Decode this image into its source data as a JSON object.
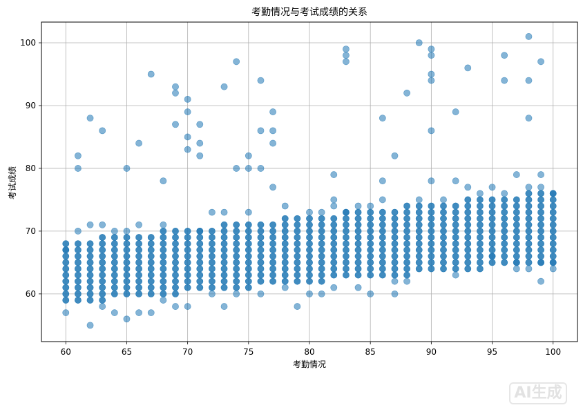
{
  "chart_data": {
    "type": "scatter",
    "title": "考勤情况与考试成绩的关系",
    "xlabel": "考勤情况",
    "ylabel": "考试成绩",
    "xlim": [
      58,
      102
    ],
    "ylim": [
      52.4,
      103.3
    ],
    "xticks": [
      60,
      65,
      70,
      75,
      80,
      85,
      90,
      95,
      100
    ],
    "yticks": [
      60,
      70,
      80,
      90,
      100
    ],
    "grid": true,
    "point_color": "#1f77b4",
    "point_alpha": 0.55,
    "dense_band": {
      "x_min": 60,
      "x_max": 100,
      "base_low": 59,
      "base_high": 68,
      "slope_low": 0.16,
      "slope_high": 0.2
    },
    "outliers": [
      {
        "x": 60,
        "y": 57
      },
      {
        "x": 60,
        "y": 67
      },
      {
        "x": 61,
        "y": 80
      },
      {
        "x": 61,
        "y": 82
      },
      {
        "x": 61,
        "y": 70
      },
      {
        "x": 62,
        "y": 88
      },
      {
        "x": 62,
        "y": 55
      },
      {
        "x": 62,
        "y": 71
      },
      {
        "x": 63,
        "y": 86
      },
      {
        "x": 63,
        "y": 71
      },
      {
        "x": 63,
        "y": 58
      },
      {
        "x": 64,
        "y": 57
      },
      {
        "x": 64,
        "y": 70
      },
      {
        "x": 65,
        "y": 80
      },
      {
        "x": 65,
        "y": 56
      },
      {
        "x": 65,
        "y": 70
      },
      {
        "x": 66,
        "y": 84
      },
      {
        "x": 66,
        "y": 57
      },
      {
        "x": 66,
        "y": 71
      },
      {
        "x": 67,
        "y": 95
      },
      {
        "x": 67,
        "y": 57
      },
      {
        "x": 68,
        "y": 78
      },
      {
        "x": 68,
        "y": 59
      },
      {
        "x": 68,
        "y": 71
      },
      {
        "x": 69,
        "y": 93
      },
      {
        "x": 69,
        "y": 92
      },
      {
        "x": 69,
        "y": 87
      },
      {
        "x": 69,
        "y": 58
      },
      {
        "x": 70,
        "y": 91
      },
      {
        "x": 70,
        "y": 89
      },
      {
        "x": 70,
        "y": 85
      },
      {
        "x": 70,
        "y": 83
      },
      {
        "x": 70,
        "y": 58
      },
      {
        "x": 71,
        "y": 87
      },
      {
        "x": 71,
        "y": 84
      },
      {
        "x": 71,
        "y": 82
      },
      {
        "x": 71,
        "y": 70
      },
      {
        "x": 72,
        "y": 73
      },
      {
        "x": 72,
        "y": 60
      },
      {
        "x": 73,
        "y": 93
      },
      {
        "x": 73,
        "y": 58
      },
      {
        "x": 73,
        "y": 73
      },
      {
        "x": 74,
        "y": 97
      },
      {
        "x": 74,
        "y": 80
      },
      {
        "x": 74,
        "y": 60
      },
      {
        "x": 75,
        "y": 82
      },
      {
        "x": 75,
        "y": 80
      },
      {
        "x": 75,
        "y": 73
      },
      {
        "x": 76,
        "y": 94
      },
      {
        "x": 76,
        "y": 86
      },
      {
        "x": 76,
        "y": 80
      },
      {
        "x": 76,
        "y": 60
      },
      {
        "x": 77,
        "y": 89
      },
      {
        "x": 77,
        "y": 86
      },
      {
        "x": 77,
        "y": 84
      },
      {
        "x": 77,
        "y": 77
      },
      {
        "x": 78,
        "y": 74
      },
      {
        "x": 78,
        "y": 61
      },
      {
        "x": 79,
        "y": 58
      },
      {
        "x": 80,
        "y": 73
      },
      {
        "x": 80,
        "y": 60
      },
      {
        "x": 81,
        "y": 73
      },
      {
        "x": 81,
        "y": 60
      },
      {
        "x": 82,
        "y": 79
      },
      {
        "x": 82,
        "y": 75
      },
      {
        "x": 82,
        "y": 74
      },
      {
        "x": 82,
        "y": 61
      },
      {
        "x": 83,
        "y": 99
      },
      {
        "x": 83,
        "y": 98
      },
      {
        "x": 83,
        "y": 97
      },
      {
        "x": 83,
        "y": 73
      },
      {
        "x": 84,
        "y": 74
      },
      {
        "x": 84,
        "y": 61
      },
      {
        "x": 85,
        "y": 74
      },
      {
        "x": 85,
        "y": 60
      },
      {
        "x": 86,
        "y": 88
      },
      {
        "x": 86,
        "y": 78
      },
      {
        "x": 86,
        "y": 75
      },
      {
        "x": 87,
        "y": 82
      },
      {
        "x": 87,
        "y": 60
      },
      {
        "x": 87,
        "y": 62
      },
      {
        "x": 88,
        "y": 92
      },
      {
        "x": 88,
        "y": 62
      },
      {
        "x": 89,
        "y": 100
      },
      {
        "x": 89,
        "y": 75
      },
      {
        "x": 90,
        "y": 99
      },
      {
        "x": 90,
        "y": 98
      },
      {
        "x": 90,
        "y": 95
      },
      {
        "x": 90,
        "y": 94
      },
      {
        "x": 90,
        "y": 86
      },
      {
        "x": 90,
        "y": 78
      },
      {
        "x": 91,
        "y": 75
      },
      {
        "x": 92,
        "y": 89
      },
      {
        "x": 92,
        "y": 78
      },
      {
        "x": 92,
        "y": 63
      },
      {
        "x": 93,
        "y": 96
      },
      {
        "x": 93,
        "y": 77
      },
      {
        "x": 94,
        "y": 76
      },
      {
        "x": 95,
        "y": 77
      },
      {
        "x": 95,
        "y": 66
      },
      {
        "x": 96,
        "y": 98
      },
      {
        "x": 96,
        "y": 94
      },
      {
        "x": 96,
        "y": 76
      },
      {
        "x": 97,
        "y": 79
      },
      {
        "x": 97,
        "y": 65
      },
      {
        "x": 97,
        "y": 64
      },
      {
        "x": 98,
        "y": 101
      },
      {
        "x": 98,
        "y": 94
      },
      {
        "x": 98,
        "y": 88
      },
      {
        "x": 98,
        "y": 77
      },
      {
        "x": 98,
        "y": 64
      },
      {
        "x": 99,
        "y": 97
      },
      {
        "x": 99,
        "y": 79
      },
      {
        "x": 99,
        "y": 77
      },
      {
        "x": 99,
        "y": 65
      },
      {
        "x": 99,
        "y": 62
      },
      {
        "x": 100,
        "y": 76
      },
      {
        "x": 100,
        "y": 65
      },
      {
        "x": 100,
        "y": 64
      }
    ]
  },
  "watermark": {
    "text": "AI生成"
  }
}
